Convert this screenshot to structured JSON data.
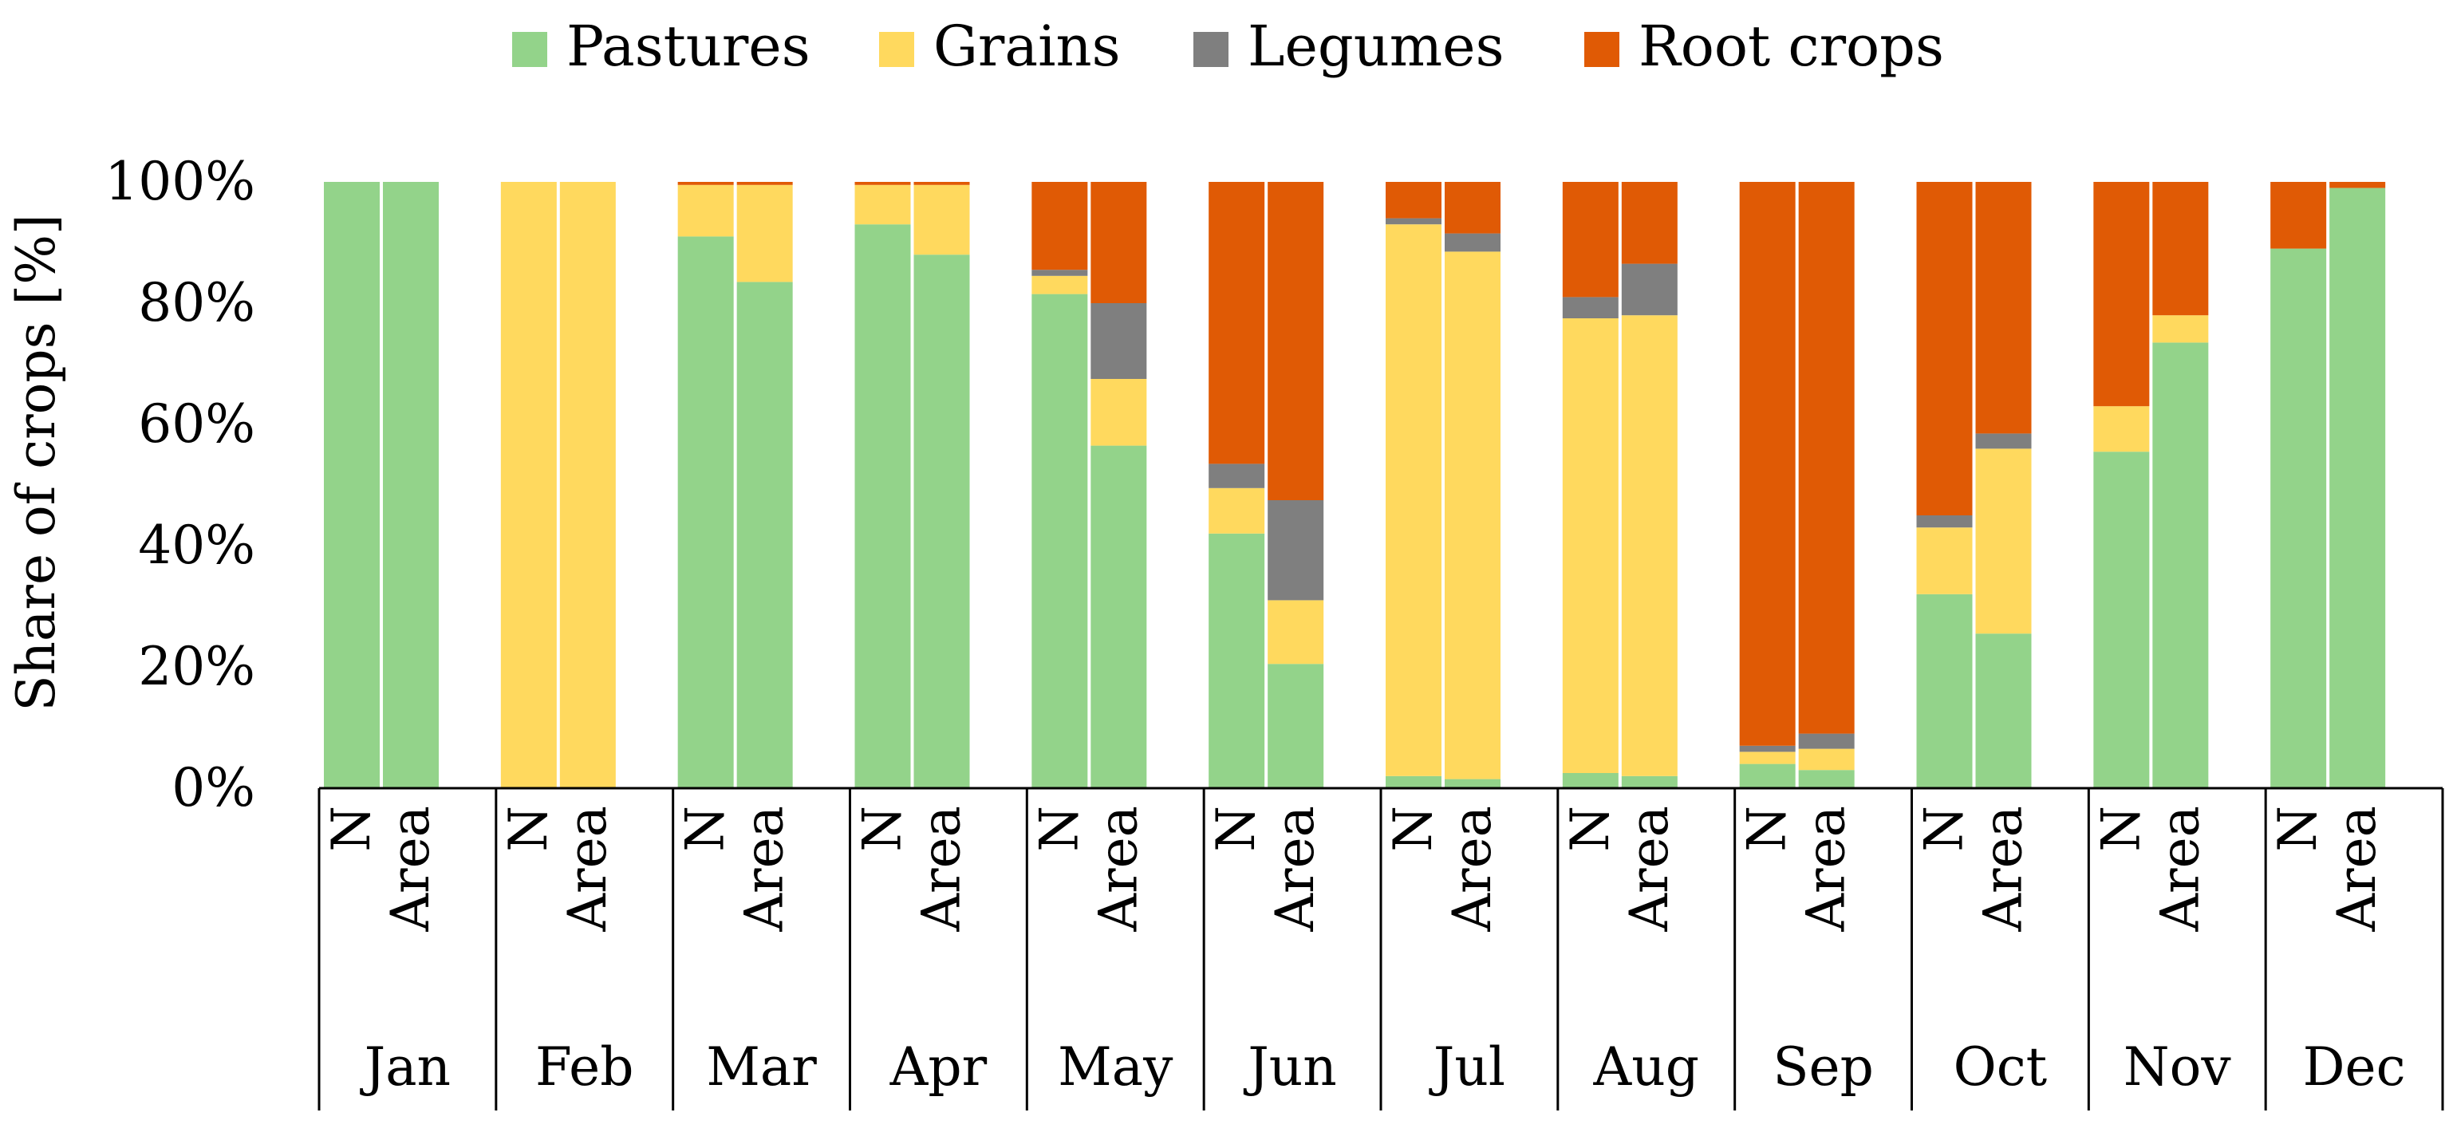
{
  "chart_data": {
    "type": "bar",
    "stacked": true,
    "percent": true,
    "ylabel": "Share of crops [%]",
    "ylim": [
      0,
      100
    ],
    "yticks": [
      "0%",
      "20%",
      "40%",
      "60%",
      "80%",
      "100%"
    ],
    "legend": {
      "position": "top",
      "entries": [
        {
          "name": "Pastures",
          "color": "#93d38a"
        },
        {
          "name": "Grains",
          "color": "#ffd95e"
        },
        {
          "name": "Legumes",
          "color": "#7f7f7f"
        },
        {
          "name": "Root crops",
          "color": "#e05a05"
        }
      ]
    },
    "sub_categories": [
      "N",
      "Area"
    ],
    "months": [
      {
        "month": "Jan",
        "bars": [
          {
            "label": "N",
            "values": [
              100,
              0,
              0,
              0
            ]
          },
          {
            "label": "Area",
            "values": [
              100,
              0,
              0,
              0
            ]
          }
        ]
      },
      {
        "month": "Feb",
        "bars": [
          {
            "label": "N",
            "values": [
              0,
              100,
              0,
              0
            ]
          },
          {
            "label": "Area",
            "values": [
              0,
              100,
              0,
              0
            ]
          }
        ]
      },
      {
        "month": "Mar",
        "bars": [
          {
            "label": "N",
            "values": [
              91,
              8.5,
              0,
              0.5
            ]
          },
          {
            "label": "Area",
            "values": [
              83.5,
              16,
              0,
              0.5
            ]
          }
        ]
      },
      {
        "month": "Apr",
        "bars": [
          {
            "label": "N",
            "values": [
              93,
              6.5,
              0,
              0.5
            ]
          },
          {
            "label": "Area",
            "values": [
              88,
              11.5,
              0,
              0.5
            ]
          }
        ]
      },
      {
        "month": "May",
        "bars": [
          {
            "label": "N",
            "values": [
              81.5,
              3,
              1,
              14.5
            ]
          },
          {
            "label": "Area",
            "values": [
              56.5,
              11,
              12.5,
              20
            ]
          }
        ]
      },
      {
        "month": "Jun",
        "bars": [
          {
            "label": "N",
            "values": [
              42,
              7.5,
              4,
              46.5
            ]
          },
          {
            "label": "Area",
            "values": [
              20.5,
              10.5,
              16.5,
              52.5
            ]
          }
        ]
      },
      {
        "month": "Jul",
        "bars": [
          {
            "label": "N",
            "values": [
              2,
              91,
              1,
              6
            ]
          },
          {
            "label": "Area",
            "values": [
              1.5,
              87,
              3,
              8.5
            ]
          }
        ]
      },
      {
        "month": "Aug",
        "bars": [
          {
            "label": "N",
            "values": [
              2.5,
              75,
              3.5,
              19
            ]
          },
          {
            "label": "Area",
            "values": [
              2,
              76,
              8.5,
              13.5
            ]
          }
        ]
      },
      {
        "month": "Sep",
        "bars": [
          {
            "label": "N",
            "values": [
              4,
              2,
              1,
              93
            ]
          },
          {
            "label": "Area",
            "values": [
              3,
              3.5,
              2.5,
              91
            ]
          }
        ]
      },
      {
        "month": "Oct",
        "bars": [
          {
            "label": "N",
            "values": [
              32,
              11,
              2,
              55
            ]
          },
          {
            "label": "Area",
            "values": [
              25.5,
              30.5,
              2.5,
              41.5
            ]
          }
        ]
      },
      {
        "month": "Nov",
        "bars": [
          {
            "label": "N",
            "values": [
              55.5,
              7.5,
              0,
              37
            ]
          },
          {
            "label": "Area",
            "values": [
              73.5,
              4.5,
              0,
              22
            ]
          }
        ]
      },
      {
        "month": "Dec",
        "bars": [
          {
            "label": "N",
            "values": [
              89,
              0,
              0,
              11
            ]
          },
          {
            "label": "Area",
            "values": [
              99,
              0,
              0,
              1
            ]
          }
        ]
      }
    ]
  }
}
